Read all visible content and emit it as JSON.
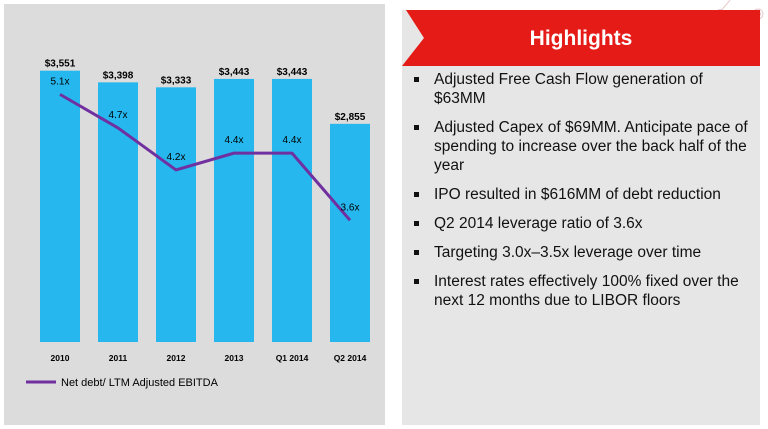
{
  "colors": {
    "bar": "#25b7ee",
    "line": "#7030a0",
    "banner": "#e41b17",
    "panel": "#dcdcdc"
  },
  "chart_data": {
    "type": "bar",
    "categories": [
      "2010",
      "2011",
      "2012",
      "2013",
      "Q1 2014",
      "Q2 2014"
    ],
    "series": [
      {
        "values": [
          3551,
          3398,
          3333,
          3443,
          3443,
          2855
        ],
        "labels": [
          "$3,551",
          "$3,398",
          "$3,333",
          "$3,443",
          "$3,443",
          "$2,855"
        ]
      },
      {
        "name": "Net debt/ LTM Adjusted EBITDA",
        "type": "line",
        "values": [
          5.1,
          4.7,
          4.2,
          4.4,
          4.4,
          3.6
        ],
        "labels": [
          "5.1x",
          "4.7x",
          "4.2x",
          "4.4x",
          "4.4x",
          "3.6x"
        ]
      }
    ],
    "legend": {
      "position": "bottom-left",
      "text": "Net debt/ LTM Adjusted EBITDA"
    },
    "ylim": [
      0,
      3900
    ],
    "line_ylim": [
      2.15,
      5.7
    ],
    "grid": false
  },
  "highlights": {
    "title": "Highlights",
    "items": [
      "Adjusted Free Cash Flow generation of $63MM",
      "Adjusted Capex of $69MM.  Anticipate pace of spending to increase over the back half of the year",
      "IPO resulted in $616MM of debt reduction",
      "Q2 2014 leverage ratio of 3.6x",
      "Targeting 3.0x–3.5x leverage over time",
      "Interest rates effectively 100% fixed over the next 12 months due to LIBOR floors"
    ]
  }
}
